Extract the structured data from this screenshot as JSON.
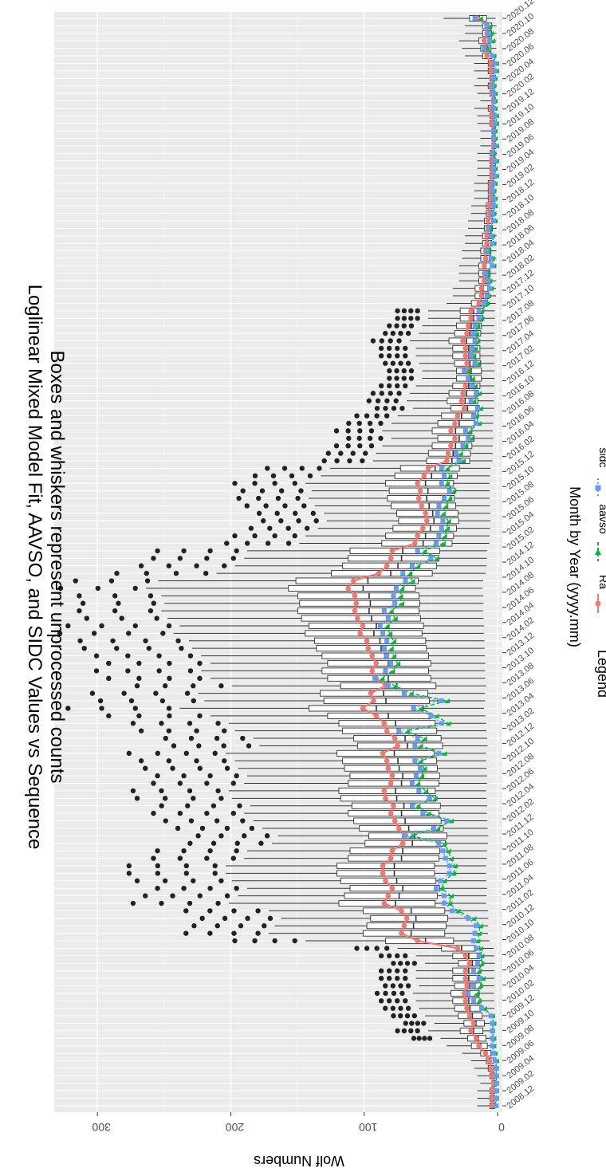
{
  "chart_data": {
    "type": "box",
    "title": "Loglinear Mixed Model Fit, AAVSO, and SIDC Values vs Sequence",
    "subtitle": "Boxes and whiskers represent unprocessed counts",
    "xlabel": "Month by Year (yyyy.mm)",
    "ylabel": "Wolf Numbers",
    "ylim": [
      0,
      330
    ],
    "yticks": [
      0,
      100,
      200,
      300
    ],
    "xlim": [
      "2008.11",
      "2020.12"
    ],
    "x_tick_labels": [
      "2008.12",
      "2009.02",
      "2009.04",
      "2009.06",
      "2009.08",
      "2009.10",
      "2009.12",
      "2010.02",
      "2010.04",
      "2010.06",
      "2010.08",
      "2010.10",
      "2010.12",
      "2011.02",
      "2011.04",
      "2011.06",
      "2011.08",
      "2011.10",
      "2011.12",
      "2012.02",
      "2012.04",
      "2012.06",
      "2012.08",
      "2012.10",
      "2012.12",
      "2013.02",
      "2013.04",
      "2013.06",
      "2013.08",
      "2013.10",
      "2013.12",
      "2014.02",
      "2014.04",
      "2014.06",
      "2014.08",
      "2014.10",
      "2014.12",
      "2015.02",
      "2015.04",
      "2015.06",
      "2015.08",
      "2015.10",
      "2015.12",
      "2016.02",
      "2016.04",
      "2016.06",
      "2016.08",
      "2016.10",
      "2016.12",
      "2017.02",
      "2017.04",
      "2017.06",
      "2017.08",
      "2017.10",
      "2017.12",
      "2018.02",
      "2018.04",
      "2018.06",
      "2018.08",
      "2018.10",
      "2018.12",
      "2019.02",
      "2019.04",
      "2019.06",
      "2019.08",
      "2019.10",
      "2019.12",
      "2020.02",
      "2020.04",
      "2020.06",
      "2020.08",
      "2020.10",
      "2020.12"
    ],
    "grid": true,
    "legend": {
      "title": "Legend",
      "placement": "bottom"
    },
    "colors": {
      "Ra": "#F8766D",
      "aavso": "#00BA38",
      "sidc": "#619CFF",
      "box": "#333333",
      "panel": "#EBEBEB",
      "grid": "#FFFFFF"
    },
    "series": [
      {
        "name": "Ra",
        "values": [
          4,
          4,
          4,
          3,
          4,
          5,
          6,
          9,
          14,
          16,
          20,
          18,
          21,
          23,
          24,
          25,
          23,
          24,
          24,
          21,
          24,
          30,
          60,
          72,
          70,
          68,
          72,
          85,
          82,
          79,
          84,
          86,
          86,
          80,
          79,
          71,
          69,
          74,
          77,
          80,
          78,
          84,
          85,
          80,
          79,
          82,
          83,
          86,
          75,
          77,
          83,
          85,
          91,
          101,
          93,
          95,
          84,
          91,
          94,
          91,
          94,
          97,
          98,
          103,
          101,
          105,
          107,
          106,
          107,
          112,
          108,
          89,
          83,
          80,
          79,
          62,
          60,
          56,
          53,
          54,
          57,
          59,
          58,
          60,
          55,
          52,
          38,
          37,
          35,
          32,
          35,
          32,
          30,
          25,
          27,
          26,
          24,
          22,
          22,
          23,
          24,
          24,
          26,
          23,
          22,
          20,
          20,
          14,
          12,
          12,
          10,
          10,
          10,
          9,
          9,
          8,
          8,
          7,
          7,
          6,
          6,
          5,
          5,
          5,
          4,
          4,
          4,
          4,
          3,
          3,
          3,
          4,
          4,
          5,
          3,
          4,
          5,
          4,
          5,
          5,
          8,
          9,
          10,
          8,
          8,
          15
        ]
      },
      {
        "name": "aavso",
        "values": [
          2,
          1,
          1,
          1,
          1,
          1,
          1,
          2,
          3,
          3,
          4,
          3,
          4,
          10,
          14,
          16,
          13,
          11,
          14,
          12,
          12,
          13,
          15,
          14,
          13,
          18,
          30,
          36,
          35,
          42,
          40,
          33,
          32,
          35,
          37,
          40,
          65,
          45,
          35,
          52,
          60,
          47,
          54,
          60,
          57,
          55,
          58,
          40,
          58,
          55,
          68,
          37,
          46,
          58,
          38,
          65,
          77,
          87,
          79,
          75,
          78,
          80,
          78,
          81,
          83,
          77,
          80,
          72,
          73,
          72,
          64,
          66,
          60,
          46,
          55,
          41,
          40,
          38,
          37,
          41,
          39,
          36,
          33,
          38,
          36,
          38,
          26,
          28,
          24,
          20,
          21,
          14,
          16,
          13,
          18,
          14,
          17,
          19,
          22,
          15,
          18,
          17,
          15,
          16,
          15,
          12,
          12,
          8,
          7,
          5,
          6,
          8,
          3,
          4,
          7,
          3,
          4,
          6,
          2,
          3,
          2,
          2,
          3,
          2,
          1,
          2,
          1,
          3,
          1,
          2,
          2,
          1,
          1,
          2,
          2,
          2,
          3,
          2,
          1,
          1,
          3,
          8,
          4,
          5,
          6,
          13
        ]
      },
      {
        "name": "sidc",
        "values": [
          1,
          1,
          1,
          1,
          1,
          1,
          2,
          3,
          4,
          4,
          4,
          4,
          5,
          12,
          18,
          22,
          18,
          14,
          18,
          15,
          14,
          16,
          18,
          17,
          16,
          22,
          34,
          40,
          40,
          46,
          43,
          36,
          36,
          39,
          41,
          44,
          70,
          48,
          38,
          56,
          64,
          51,
          59,
          64,
          61,
          58,
          62,
          44,
          62,
          60,
          74,
          42,
          50,
          63,
          42,
          70,
          82,
          92,
          84,
          80,
          83,
          85,
          83,
          86,
          88,
          82,
          85,
          77,
          78,
          76,
          69,
          71,
          64,
          50,
          60,
          46,
          44,
          42,
          41,
          45,
          44,
          40,
          36,
          42,
          40,
          42,
          29,
          31,
          26,
          22,
          24,
          16,
          18,
          15,
          20,
          16,
          19,
          22,
          25,
          17,
          20,
          19,
          17,
          18,
          17,
          14,
          14,
          10,
          8,
          6,
          7,
          9,
          4,
          5,
          8,
          4,
          5,
          7,
          3,
          4,
          3,
          3,
          4,
          3,
          2,
          3,
          2,
          4,
          2,
          3,
          3,
          2,
          2,
          3,
          3,
          3,
          4,
          3,
          2,
          2,
          4,
          10,
          6,
          7,
          8,
          17
        ]
      }
    ],
    "boxes_note": "",
    "box_months_start": "2008.11"
  }
}
